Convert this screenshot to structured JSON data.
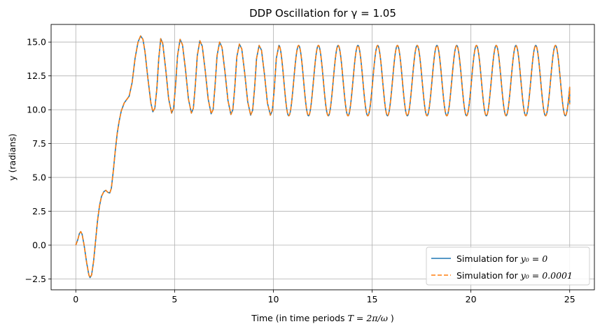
{
  "chart_data": {
    "type": "line",
    "title": "DDP Oscillation for γ = 1.05",
    "xlabel": "Time (in time periods ",
    "xlabel_math": "T = 2π/ω",
    "xlabel_suffix": " )",
    "ylabel": "y (radians)",
    "xlim": [
      -1.25,
      26.25
    ],
    "ylim": [
      -3.3,
      16.3
    ],
    "grid": true,
    "legend_position": "lower-right",
    "x_ticks": [
      {
        "value": 0,
        "label": "0"
      },
      {
        "value": 5,
        "label": "5"
      },
      {
        "value": 10,
        "label": "10"
      },
      {
        "value": 15,
        "label": "15"
      },
      {
        "value": 20,
        "label": "20"
      },
      {
        "value": 25,
        "label": "25"
      }
    ],
    "y_ticks": [
      {
        "value": -2.5,
        "label": "−2.5"
      },
      {
        "value": 0,
        "label": "0.0"
      },
      {
        "value": 2.5,
        "label": "2.5"
      },
      {
        "value": 5,
        "label": "5.0"
      },
      {
        "value": 7.5,
        "label": "7.5"
      },
      {
        "value": 10,
        "label": "10.0"
      },
      {
        "value": 12.5,
        "label": "12.5"
      },
      {
        "value": 15,
        "label": "15.0"
      }
    ],
    "series": [
      {
        "name": "Simulation for ",
        "name_math": "y₀ = 0",
        "color": "#1f77b4",
        "style": "solid",
        "points": [
          [
            0.0,
            0.0
          ],
          [
            0.1,
            0.4
          ],
          [
            0.18,
            0.85
          ],
          [
            0.25,
            1.0
          ],
          [
            0.32,
            0.8
          ],
          [
            0.42,
            0.0
          ],
          [
            0.55,
            -1.3
          ],
          [
            0.66,
            -2.2
          ],
          [
            0.72,
            -2.4
          ],
          [
            0.8,
            -2.2
          ],
          [
            0.9,
            -1.2
          ],
          [
            1.0,
            0.3
          ],
          [
            1.1,
            1.8
          ],
          [
            1.2,
            2.9
          ],
          [
            1.3,
            3.6
          ],
          [
            1.42,
            3.95
          ],
          [
            1.52,
            4.05
          ],
          [
            1.62,
            3.9
          ],
          [
            1.72,
            3.85
          ],
          [
            1.8,
            4.2
          ],
          [
            1.9,
            5.5
          ],
          [
            2.0,
            7.0
          ],
          [
            2.1,
            8.3
          ],
          [
            2.2,
            9.2
          ],
          [
            2.3,
            9.9
          ],
          [
            2.45,
            10.5
          ],
          [
            2.6,
            10.8
          ],
          [
            2.7,
            11.0
          ],
          [
            2.85,
            12.0
          ],
          [
            3.0,
            13.8
          ],
          [
            3.15,
            15.0
          ],
          [
            3.28,
            15.45
          ],
          [
            3.4,
            15.2
          ],
          [
            3.5,
            14.3
          ],
          [
            3.65,
            12.3
          ],
          [
            3.8,
            10.5
          ],
          [
            3.9,
            9.85
          ],
          [
            4.0,
            10.1
          ],
          [
            4.1,
            11.5
          ],
          [
            4.2,
            13.8
          ],
          [
            4.3,
            15.25
          ],
          [
            4.4,
            14.9
          ],
          [
            4.55,
            13.0
          ],
          [
            4.7,
            10.8
          ],
          [
            4.85,
            9.75
          ],
          [
            4.95,
            10.1
          ],
          [
            5.05,
            11.8
          ],
          [
            5.15,
            14.0
          ],
          [
            5.28,
            15.2
          ],
          [
            5.4,
            14.8
          ],
          [
            5.55,
            13.0
          ],
          [
            5.7,
            10.8
          ],
          [
            5.85,
            9.75
          ],
          [
            5.95,
            10.1
          ],
          [
            6.05,
            11.8
          ],
          [
            6.15,
            14.0
          ],
          [
            6.28,
            15.1
          ],
          [
            6.4,
            14.7
          ],
          [
            6.55,
            12.9
          ],
          [
            6.7,
            10.8
          ],
          [
            6.85,
            9.7
          ],
          [
            6.95,
            10.0
          ],
          [
            7.05,
            11.8
          ],
          [
            7.15,
            14.0
          ],
          [
            7.28,
            15.0
          ],
          [
            7.4,
            14.6
          ],
          [
            7.55,
            12.8
          ],
          [
            7.7,
            10.7
          ],
          [
            7.85,
            9.65
          ],
          [
            7.95,
            10.0
          ],
          [
            8.05,
            11.7
          ],
          [
            8.15,
            13.9
          ],
          [
            8.28,
            14.85
          ],
          [
            8.4,
            14.5
          ],
          [
            8.55,
            12.7
          ],
          [
            8.7,
            10.6
          ],
          [
            8.85,
            9.6
          ],
          [
            8.95,
            9.95
          ],
          [
            9.05,
            11.6
          ],
          [
            9.15,
            13.8
          ],
          [
            9.28,
            14.75
          ],
          [
            9.4,
            14.4
          ],
          [
            9.55,
            12.6
          ],
          [
            9.7,
            10.5
          ],
          [
            9.85,
            9.6
          ],
          [
            9.95,
            9.95
          ],
          [
            10.05,
            11.6
          ],
          [
            10.15,
            13.8
          ],
          [
            10.28,
            14.75
          ]
        ],
        "steady_state": {
          "start": 10.28,
          "end": 25.0,
          "period": 1.0,
          "max": 14.75,
          "min": 9.55
        }
      },
      {
        "name": "Simulation for ",
        "name_math": "y₀ = 0.0001",
        "color": "#ff7f0e",
        "style": "dashed",
        "points": "same as first series",
        "steady_state": {
          "start": 10.28,
          "end": 25.0,
          "period": 1.0,
          "max": 14.75,
          "min": 9.55
        }
      }
    ],
    "end_point": [
      25.0,
      10.4
    ]
  }
}
